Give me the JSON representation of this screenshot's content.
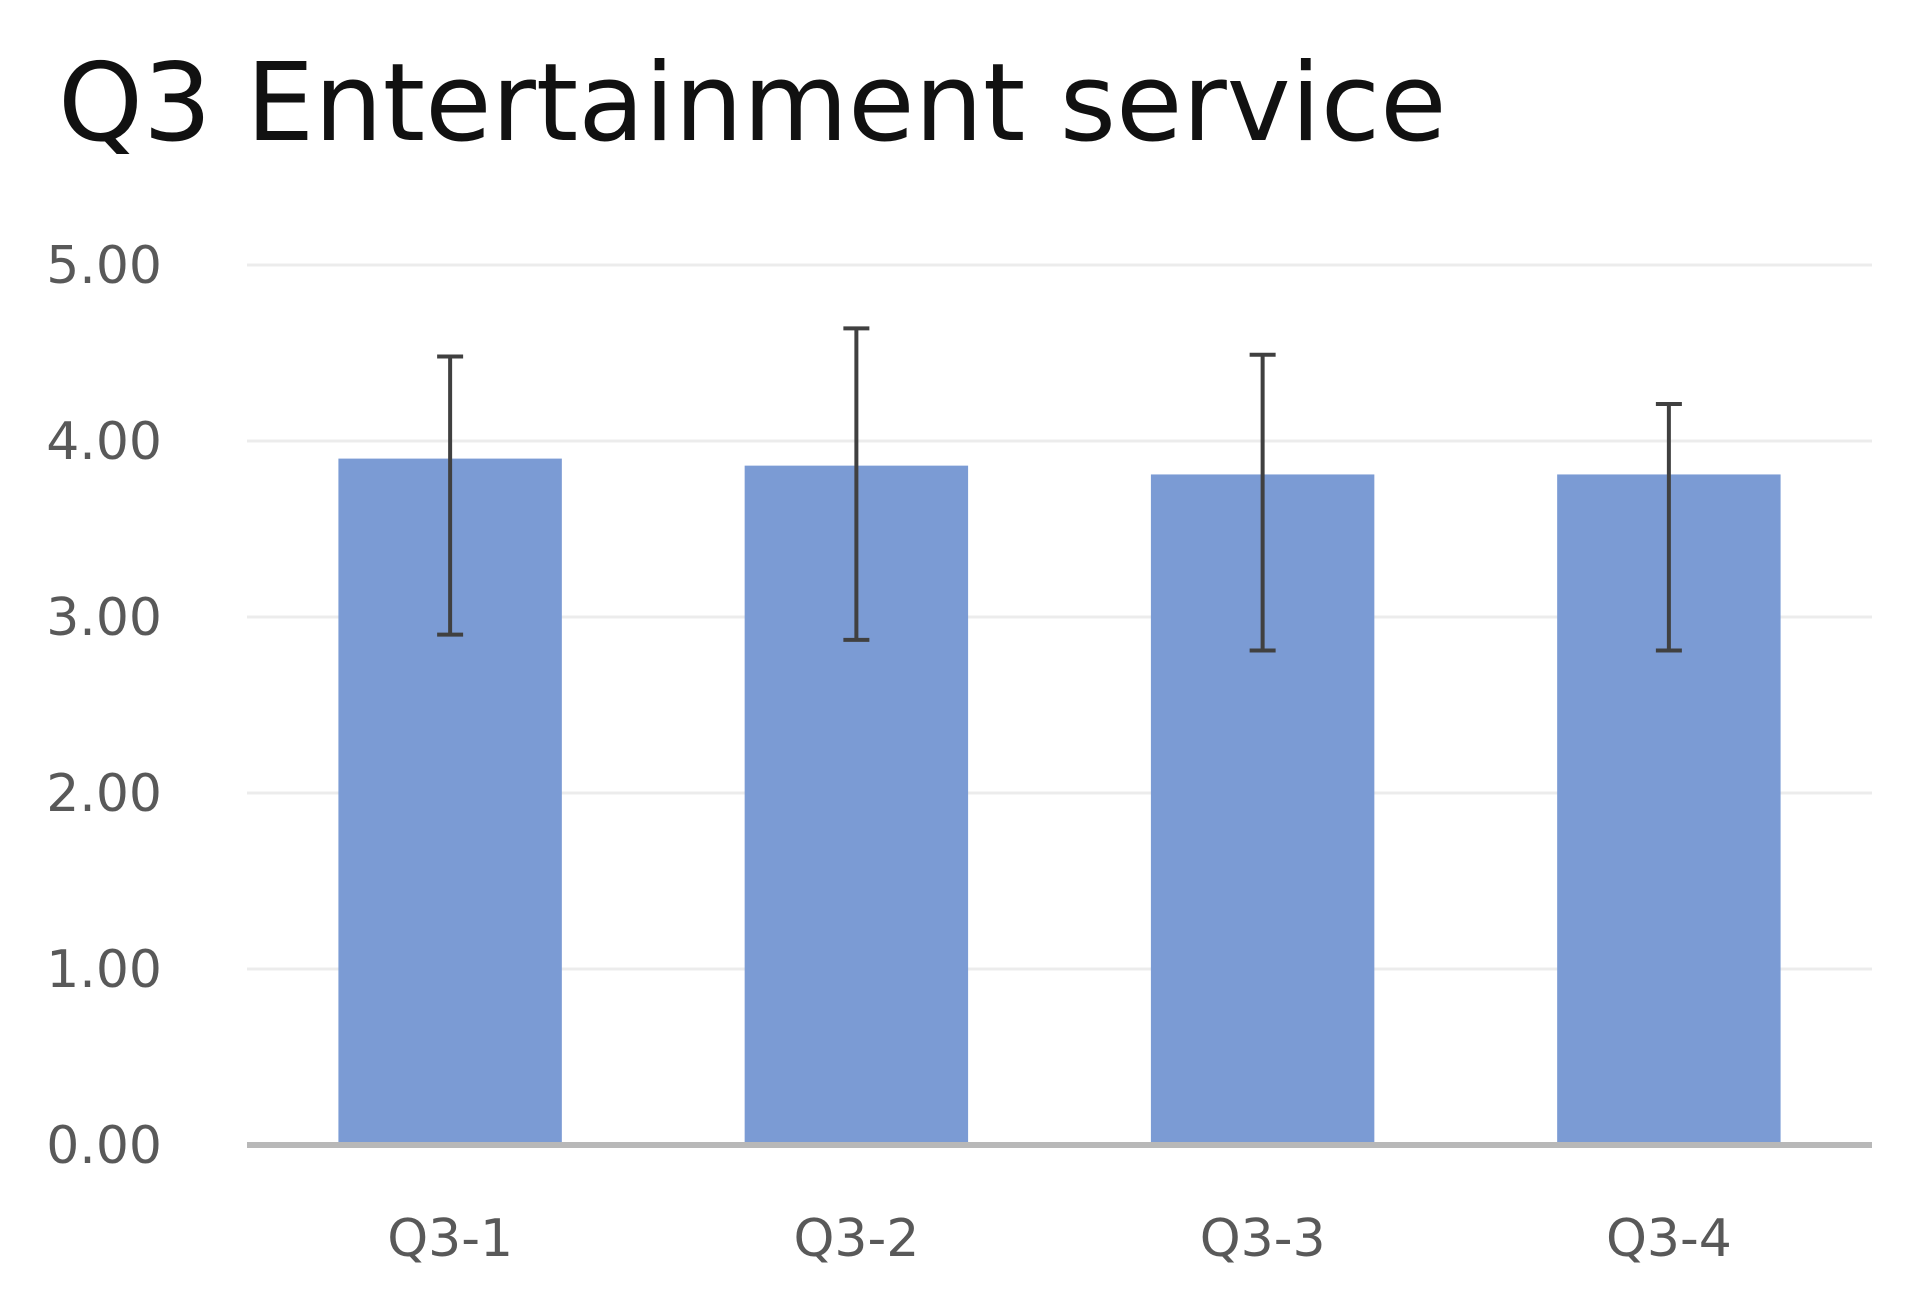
{
  "chart_data": {
    "type": "bar",
    "title": "Q3 Entertainment service",
    "xlabel": "",
    "ylabel": "",
    "categories": [
      "Q3-1",
      "Q3-2",
      "Q3-3",
      "Q3-4"
    ],
    "values": [
      3.9,
      3.86,
      3.81,
      3.81
    ],
    "error_low": [
      2.9,
      2.87,
      2.81,
      2.81
    ],
    "error_high": [
      4.48,
      4.64,
      4.49,
      4.21
    ],
    "ylim": [
      0,
      5
    ],
    "yticks": [
      0,
      1,
      2,
      3,
      4,
      5
    ],
    "ytick_labels": [
      "0.00",
      "1.00",
      "2.00",
      "3.00",
      "4.00",
      "5.00"
    ],
    "grid": true,
    "legend": "none",
    "colors": {
      "bar": "#7b9bd4",
      "error_bar": "#404040",
      "grid": "#ececec",
      "axis": "#b8b8b8"
    }
  }
}
